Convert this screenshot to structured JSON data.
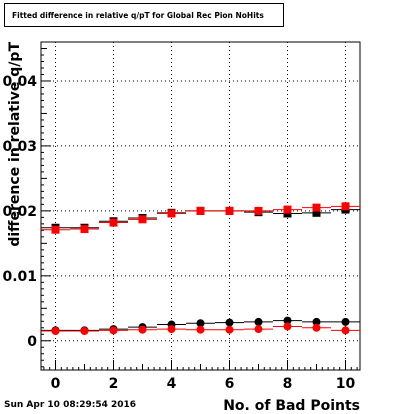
{
  "timestamp": "Sun Apr 10 08:29:54 2016",
  "chart_data": {
    "type": "scatter",
    "title": "Fitted difference in relative q/pT for Global Rec Pion NoHits",
    "xlabel": "No. of Bad Points",
    "ylabel": "difference in relative q/pT",
    "xlim": [
      -0.5,
      10.5
    ],
    "ylim": [
      -0.0045,
      0.046
    ],
    "x_ticks": [
      0,
      2,
      4,
      6,
      8,
      10
    ],
    "y_ticks": [
      0,
      0.01,
      0.02,
      0.03,
      0.04
    ],
    "y_tick_labels": [
      "0",
      "0.01",
      "0.02",
      "0.03",
      "0.04"
    ],
    "grid": true,
    "series": [
      {
        "marker": "square",
        "color": "#000000",
        "x": [
          0,
          1,
          2,
          3,
          4,
          5,
          6,
          7,
          8,
          9,
          10
        ],
        "y": [
          0.0174,
          0.0174,
          0.0184,
          0.0189,
          0.0197,
          0.02,
          0.02,
          0.0198,
          0.0196,
          0.0197,
          0.0202
        ]
      },
      {
        "marker": "square",
        "color": "#ff0000",
        "x": [
          0,
          1,
          2,
          3,
          4,
          5,
          6,
          7,
          8,
          9,
          10
        ],
        "y": [
          0.0171,
          0.0172,
          0.0182,
          0.0187,
          0.0196,
          0.02,
          0.02,
          0.02,
          0.0202,
          0.0205,
          0.0207
        ]
      },
      {
        "marker": "circle",
        "color": "#000000",
        "x": [
          0,
          1,
          2,
          3,
          4,
          5,
          6,
          7,
          8,
          9,
          10
        ],
        "y": [
          0.0016,
          0.0016,
          0.0018,
          0.0021,
          0.0025,
          0.0027,
          0.0028,
          0.0029,
          0.0031,
          0.0029,
          0.0029
        ]
      },
      {
        "marker": "circle",
        "color": "#ff0000",
        "x": [
          0,
          1,
          2,
          3,
          4,
          5,
          6,
          7,
          8,
          9,
          10
        ],
        "y": [
          0.0015,
          0.0015,
          0.0016,
          0.0017,
          0.0018,
          0.0017,
          0.0017,
          0.0018,
          0.0022,
          0.002,
          0.0016
        ]
      }
    ]
  }
}
